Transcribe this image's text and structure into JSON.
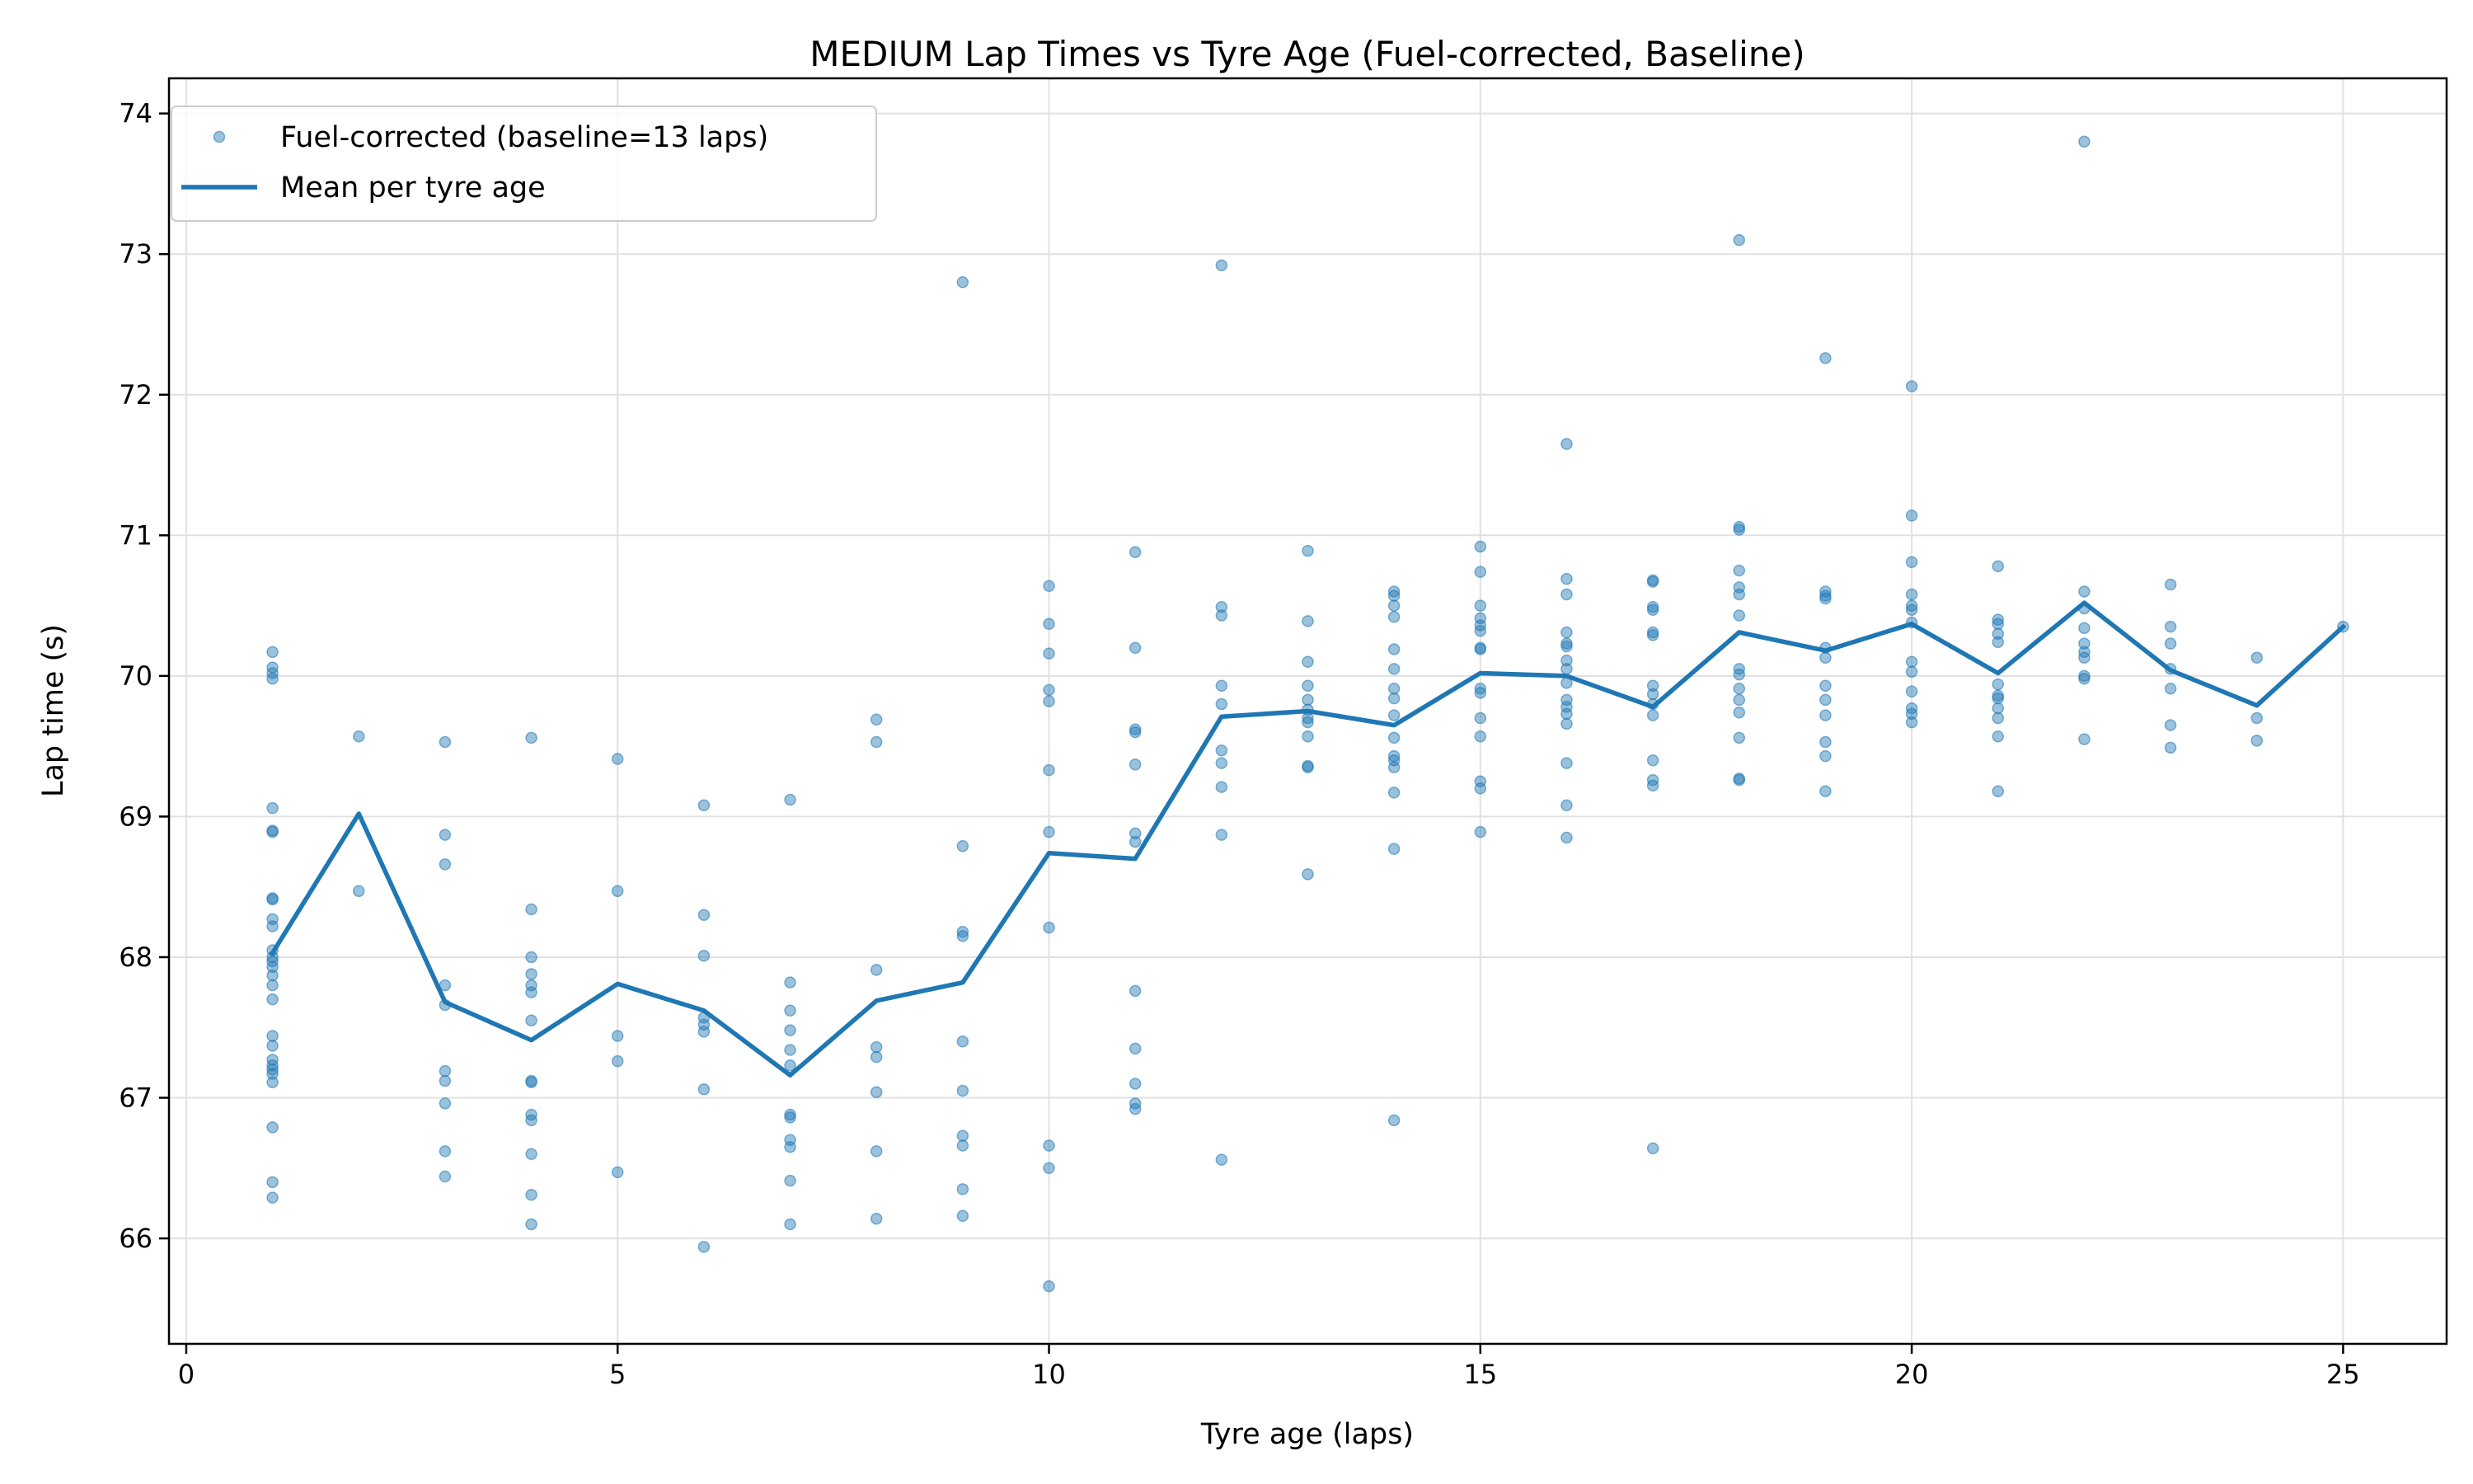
{
  "chart_data": {
    "type": "scatter",
    "title": "MEDIUM Lap Times vs Tyre Age (Fuel-corrected, Baseline)",
    "xlabel": "Tyre age (laps)",
    "ylabel": "Lap time (s)",
    "xlim": [
      -0.2,
      26.2
    ],
    "ylim": [
      65.25,
      74.25
    ],
    "xticks": [
      0,
      5,
      10,
      15,
      20,
      25
    ],
    "yticks": [
      66,
      67,
      68,
      69,
      70,
      71,
      72,
      73,
      74
    ],
    "grid": true,
    "legend_position": "top-left",
    "colors": {
      "series": "#1f77b4",
      "grid": "#e0e0e0",
      "axis": "#000000"
    },
    "series": [
      {
        "name": "Fuel-corrected (baseline=13 laps)",
        "kind": "scatter",
        "points": [
          [
            1,
            70.17
          ],
          [
            1,
            70.06
          ],
          [
            1,
            70.02
          ],
          [
            1,
            69.98
          ],
          [
            1,
            69.06
          ],
          [
            1,
            68.9
          ],
          [
            1,
            68.89
          ],
          [
            1,
            68.42
          ],
          [
            1,
            68.41
          ],
          [
            1,
            68.27
          ],
          [
            1,
            68.22
          ],
          [
            1,
            68.05
          ],
          [
            1,
            68.0
          ],
          [
            1,
            67.97
          ],
          [
            1,
            67.93
          ],
          [
            1,
            67.87
          ],
          [
            1,
            67.8
          ],
          [
            1,
            67.7
          ],
          [
            1,
            67.44
          ],
          [
            1,
            67.37
          ],
          [
            1,
            67.27
          ],
          [
            1,
            67.23
          ],
          [
            1,
            67.2
          ],
          [
            1,
            67.17
          ],
          [
            1,
            67.11
          ],
          [
            1,
            66.79
          ],
          [
            1,
            66.4
          ],
          [
            1,
            66.29
          ],
          [
            2,
            69.57
          ],
          [
            2,
            68.47
          ],
          [
            3,
            69.53
          ],
          [
            3,
            68.87
          ],
          [
            3,
            68.66
          ],
          [
            3,
            67.8
          ],
          [
            3,
            67.66
          ],
          [
            3,
            67.19
          ],
          [
            3,
            67.12
          ],
          [
            3,
            66.96
          ],
          [
            3,
            66.62
          ],
          [
            3,
            66.44
          ],
          [
            4,
            69.56
          ],
          [
            4,
            68.34
          ],
          [
            4,
            68.0
          ],
          [
            4,
            67.88
          ],
          [
            4,
            67.8
          ],
          [
            4,
            67.75
          ],
          [
            4,
            67.55
          ],
          [
            4,
            67.12
          ],
          [
            4,
            67.11
          ],
          [
            4,
            66.88
          ],
          [
            4,
            66.84
          ],
          [
            4,
            66.6
          ],
          [
            4,
            66.31
          ],
          [
            4,
            66.1
          ],
          [
            5,
            69.41
          ],
          [
            5,
            68.47
          ],
          [
            5,
            67.44
          ],
          [
            5,
            67.26
          ],
          [
            5,
            66.47
          ],
          [
            6,
            69.08
          ],
          [
            6,
            68.3
          ],
          [
            6,
            68.01
          ],
          [
            6,
            67.57
          ],
          [
            6,
            67.52
          ],
          [
            6,
            67.47
          ],
          [
            6,
            67.06
          ],
          [
            6,
            65.94
          ],
          [
            7,
            69.12
          ],
          [
            7,
            67.82
          ],
          [
            7,
            67.62
          ],
          [
            7,
            67.48
          ],
          [
            7,
            67.34
          ],
          [
            7,
            67.23
          ],
          [
            7,
            66.88
          ],
          [
            7,
            66.86
          ],
          [
            7,
            66.7
          ],
          [
            7,
            66.65
          ],
          [
            7,
            66.41
          ],
          [
            7,
            66.1
          ],
          [
            8,
            69.69
          ],
          [
            8,
            69.53
          ],
          [
            8,
            67.91
          ],
          [
            8,
            67.36
          ],
          [
            8,
            67.29
          ],
          [
            8,
            67.04
          ],
          [
            8,
            66.62
          ],
          [
            8,
            66.14
          ],
          [
            9,
            72.8
          ],
          [
            9,
            68.79
          ],
          [
            9,
            68.18
          ],
          [
            9,
            68.15
          ],
          [
            9,
            67.4
          ],
          [
            9,
            67.05
          ],
          [
            9,
            66.73
          ],
          [
            9,
            66.66
          ],
          [
            9,
            66.35
          ],
          [
            9,
            66.16
          ],
          [
            10,
            70.64
          ],
          [
            10,
            70.37
          ],
          [
            10,
            70.16
          ],
          [
            10,
            69.9
          ],
          [
            10,
            69.82
          ],
          [
            10,
            69.33
          ],
          [
            10,
            68.89
          ],
          [
            10,
            68.21
          ],
          [
            10,
            66.66
          ],
          [
            10,
            66.5
          ],
          [
            10,
            65.66
          ],
          [
            11,
            70.88
          ],
          [
            11,
            70.2
          ],
          [
            11,
            69.62
          ],
          [
            11,
            69.6
          ],
          [
            11,
            69.37
          ],
          [
            11,
            68.88
          ],
          [
            11,
            68.82
          ],
          [
            11,
            67.76
          ],
          [
            11,
            67.35
          ],
          [
            11,
            67.1
          ],
          [
            11,
            66.96
          ],
          [
            11,
            66.92
          ],
          [
            12,
            72.92
          ],
          [
            12,
            70.49
          ],
          [
            12,
            70.43
          ],
          [
            12,
            69.93
          ],
          [
            12,
            69.8
          ],
          [
            12,
            69.47
          ],
          [
            12,
            69.38
          ],
          [
            12,
            69.21
          ],
          [
            12,
            68.87
          ],
          [
            12,
            66.56
          ],
          [
            13,
            70.89
          ],
          [
            13,
            70.39
          ],
          [
            13,
            70.1
          ],
          [
            13,
            69.93
          ],
          [
            13,
            69.83
          ],
          [
            13,
            69.76
          ],
          [
            13,
            69.7
          ],
          [
            13,
            69.67
          ],
          [
            13,
            69.57
          ],
          [
            13,
            69.36
          ],
          [
            13,
            69.35
          ],
          [
            13,
            68.59
          ],
          [
            14,
            70.6
          ],
          [
            14,
            70.57
          ],
          [
            14,
            70.5
          ],
          [
            14,
            70.42
          ],
          [
            14,
            70.19
          ],
          [
            14,
            70.05
          ],
          [
            14,
            69.91
          ],
          [
            14,
            69.84
          ],
          [
            14,
            69.72
          ],
          [
            14,
            69.56
          ],
          [
            14,
            69.43
          ],
          [
            14,
            69.4
          ],
          [
            14,
            69.35
          ],
          [
            14,
            69.17
          ],
          [
            14,
            68.77
          ],
          [
            14,
            66.84
          ],
          [
            15,
            70.92
          ],
          [
            15,
            70.74
          ],
          [
            15,
            70.5
          ],
          [
            15,
            70.41
          ],
          [
            15,
            70.36
          ],
          [
            15,
            70.32
          ],
          [
            15,
            70.2
          ],
          [
            15,
            70.19
          ],
          [
            15,
            69.91
          ],
          [
            15,
            69.88
          ],
          [
            15,
            69.7
          ],
          [
            15,
            69.57
          ],
          [
            15,
            69.25
          ],
          [
            15,
            69.2
          ],
          [
            15,
            68.89
          ],
          [
            16,
            71.65
          ],
          [
            16,
            70.69
          ],
          [
            16,
            70.58
          ],
          [
            16,
            70.31
          ],
          [
            16,
            70.23
          ],
          [
            16,
            70.21
          ],
          [
            16,
            70.11
          ],
          [
            16,
            70.05
          ],
          [
            16,
            69.95
          ],
          [
            16,
            69.83
          ],
          [
            16,
            69.78
          ],
          [
            16,
            69.73
          ],
          [
            16,
            69.66
          ],
          [
            16,
            69.38
          ],
          [
            16,
            69.08
          ],
          [
            16,
            68.85
          ],
          [
            17,
            70.68
          ],
          [
            17,
            70.67
          ],
          [
            17,
            70.49
          ],
          [
            17,
            70.47
          ],
          [
            17,
            70.31
          ],
          [
            17,
            70.29
          ],
          [
            17,
            69.93
          ],
          [
            17,
            69.87
          ],
          [
            17,
            69.8
          ],
          [
            17,
            69.72
          ],
          [
            17,
            69.4
          ],
          [
            17,
            69.26
          ],
          [
            17,
            69.22
          ],
          [
            17,
            66.64
          ],
          [
            18,
            73.1
          ],
          [
            18,
            71.06
          ],
          [
            18,
            71.04
          ],
          [
            18,
            70.75
          ],
          [
            18,
            70.63
          ],
          [
            18,
            70.58
          ],
          [
            18,
            70.43
          ],
          [
            18,
            70.05
          ],
          [
            18,
            70.01
          ],
          [
            18,
            69.91
          ],
          [
            18,
            69.83
          ],
          [
            18,
            69.74
          ],
          [
            18,
            69.56
          ],
          [
            18,
            69.27
          ],
          [
            18,
            69.26
          ],
          [
            19,
            72.26
          ],
          [
            19,
            70.6
          ],
          [
            19,
            70.57
          ],
          [
            19,
            70.55
          ],
          [
            19,
            70.2
          ],
          [
            19,
            70.13
          ],
          [
            19,
            69.93
          ],
          [
            19,
            69.83
          ],
          [
            19,
            69.72
          ],
          [
            19,
            69.53
          ],
          [
            19,
            69.43
          ],
          [
            19,
            69.18
          ],
          [
            20,
            72.06
          ],
          [
            20,
            71.14
          ],
          [
            20,
            70.81
          ],
          [
            20,
            70.58
          ],
          [
            20,
            70.5
          ],
          [
            20,
            70.47
          ],
          [
            20,
            70.38
          ],
          [
            20,
            70.1
          ],
          [
            20,
            70.03
          ],
          [
            20,
            69.89
          ],
          [
            20,
            69.77
          ],
          [
            20,
            69.73
          ],
          [
            20,
            69.67
          ],
          [
            21,
            70.78
          ],
          [
            21,
            70.4
          ],
          [
            21,
            70.37
          ],
          [
            21,
            70.3
          ],
          [
            21,
            70.24
          ],
          [
            21,
            69.94
          ],
          [
            21,
            69.86
          ],
          [
            21,
            69.84
          ],
          [
            21,
            69.77
          ],
          [
            21,
            69.7
          ],
          [
            21,
            69.57
          ],
          [
            21,
            69.18
          ],
          [
            22,
            73.8
          ],
          [
            22,
            70.6
          ],
          [
            22,
            70.48
          ],
          [
            22,
            70.34
          ],
          [
            22,
            70.23
          ],
          [
            22,
            70.17
          ],
          [
            22,
            70.13
          ],
          [
            22,
            70.0
          ],
          [
            22,
            69.98
          ],
          [
            22,
            69.55
          ],
          [
            23,
            70.65
          ],
          [
            23,
            70.35
          ],
          [
            23,
            70.23
          ],
          [
            23,
            70.05
          ],
          [
            23,
            69.91
          ],
          [
            23,
            69.65
          ],
          [
            23,
            69.49
          ],
          [
            24,
            70.13
          ],
          [
            24,
            69.7
          ],
          [
            24,
            69.54
          ],
          [
            25,
            70.35
          ]
        ]
      },
      {
        "name": "Mean per tyre age",
        "kind": "line",
        "x": [
          1,
          2,
          3,
          4,
          5,
          6,
          7,
          8,
          9,
          10,
          11,
          12,
          13,
          14,
          15,
          16,
          17,
          18,
          19,
          20,
          21,
          22,
          23,
          24,
          25
        ],
        "y": [
          68.03,
          69.02,
          67.68,
          67.41,
          67.81,
          67.62,
          67.16,
          67.69,
          67.82,
          68.74,
          68.7,
          69.71,
          69.75,
          69.65,
          70.02,
          70.0,
          69.78,
          70.31,
          70.18,
          70.37,
          70.02,
          70.52,
          70.04,
          69.79,
          70.35
        ]
      }
    ]
  }
}
